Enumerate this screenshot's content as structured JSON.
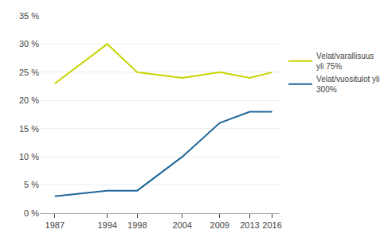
{
  "chart_data": {
    "type": "line",
    "x": [
      1987,
      1994,
      1998,
      2004,
      2009,
      2013,
      2016
    ],
    "series": [
      {
        "name": "Velat/varallisuus\nyli 75%",
        "color": "#c8d400",
        "values": [
          23,
          30,
          25,
          24,
          25,
          24,
          25
        ]
      },
      {
        "name": "Velat/vuositulot yli\n300%",
        "color": "#1f6699",
        "values": [
          3,
          4,
          4,
          10,
          16,
          18,
          18
        ]
      }
    ],
    "xlim": [
      1985,
      2017
    ],
    "xticks": [
      1987,
      1994,
      1998,
      2004,
      2009,
      2013,
      2016
    ],
    "ylim": [
      0,
      35
    ],
    "yticks": [
      {
        "value": 0,
        "label": "0 %"
      },
      {
        "value": 5,
        "label": "5 %"
      },
      {
        "value": 10,
        "label": "10 %"
      },
      {
        "value": 15,
        "label": "15 %"
      },
      {
        "value": 20,
        "label": "20 %"
      },
      {
        "value": 25,
        "label": "25 %"
      },
      {
        "value": 30,
        "label": "30 %"
      },
      {
        "value": 35,
        "label": "35 %"
      }
    ],
    "grid": true,
    "legend": "right"
  }
}
